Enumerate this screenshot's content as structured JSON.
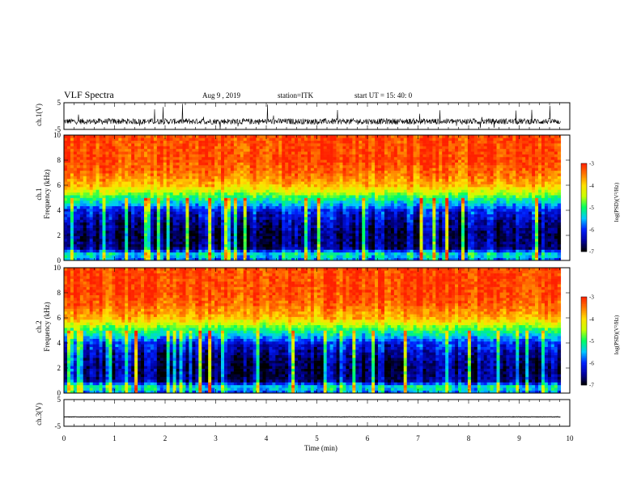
{
  "header": {
    "title": "VLF Spectra",
    "date": "Aug 9 , 2019",
    "station": "station=ITK",
    "start": "start UT = 15: 40: 0"
  },
  "colors": {
    "trace": "#000000",
    "axis": "#000000",
    "colormap": [
      "#000000",
      "#0000a0",
      "#0020ff",
      "#00c8ff",
      "#00ff60",
      "#c8ff00",
      "#ffe000",
      "#ff7a00",
      "#ff2000",
      "#ffffff"
    ]
  },
  "chart_data": [
    {
      "type": "line",
      "name": "ch1-waveform",
      "ylabel": "ch.1(V)",
      "ylim": [
        -5,
        5
      ],
      "yticks": [
        "5",
        "-5"
      ],
      "x_unit": "min",
      "xlim": [
        0,
        10
      ],
      "data_end_min": 9.82,
      "mean_level": -2,
      "typical_range": [
        -3,
        -1
      ],
      "spike_range": [
        -5,
        5
      ]
    },
    {
      "type": "heatmap",
      "name": "ch1-spectrogram",
      "ylabel_line1": "ch.1",
      "ylabel_line2": "Frequency (kHz)",
      "ylim": [
        0,
        10
      ],
      "yticks": [
        "0",
        "2",
        "4",
        "6",
        "8",
        "10"
      ],
      "xlim": [
        0,
        10
      ],
      "data_end_min": 9.82,
      "colorbar": {
        "label": "log(PSD)(V²/Hz)",
        "range": [
          -7,
          -3
        ],
        "ticks": [
          "-3",
          "-4",
          "-5",
          "-6",
          "-7"
        ]
      },
      "spectral_profile_khz_logpsd": [
        [
          0,
          -5.8
        ],
        [
          0.5,
          -5.2
        ],
        [
          1,
          -6.6
        ],
        [
          2,
          -6.7
        ],
        [
          3,
          -6.5
        ],
        [
          4,
          -6.1
        ],
        [
          4.5,
          -5.5
        ],
        [
          5,
          -5.0
        ],
        [
          5.5,
          -4.4
        ],
        [
          6,
          -3.8
        ],
        [
          7,
          -3.4
        ],
        [
          8,
          -3.2
        ],
        [
          10,
          -3.2
        ]
      ]
    },
    {
      "type": "heatmap",
      "name": "ch2-spectrogram",
      "ylabel_line1": "ch.2",
      "ylabel_line2": "Frequency (kHz)",
      "ylim": [
        0,
        10
      ],
      "yticks": [
        "0",
        "2",
        "4",
        "6",
        "8",
        "10"
      ],
      "xlim": [
        0,
        10
      ],
      "data_end_min": 9.82,
      "colorbar": {
        "label": "log(PSD)(V²/Hz)",
        "range": [
          -7,
          -3
        ],
        "ticks": [
          "-3",
          "-4",
          "-5",
          "-6",
          "-7"
        ]
      },
      "spectral_profile_khz_logpsd": [
        [
          0,
          -5.8
        ],
        [
          0.5,
          -5.2
        ],
        [
          1,
          -6.6
        ],
        [
          2,
          -6.7
        ],
        [
          3,
          -6.5
        ],
        [
          4,
          -6.1
        ],
        [
          4.5,
          -5.5
        ],
        [
          5,
          -5.0
        ],
        [
          5.5,
          -4.4
        ],
        [
          6,
          -3.8
        ],
        [
          7,
          -3.4
        ],
        [
          8,
          -3.2
        ],
        [
          10,
          -3.2
        ]
      ]
    },
    {
      "type": "line",
      "name": "ch3-waveform",
      "ylabel": "ch.3(V)",
      "ylim": [
        -5,
        5
      ],
      "yticks": [
        "5",
        "-5"
      ],
      "xlim": [
        0,
        10
      ],
      "data_end_min": 9.82,
      "mean_level": -1.5
    }
  ],
  "xaxis": {
    "label": "Time (min)",
    "ticks": [
      "0",
      "1",
      "2",
      "3",
      "4",
      "5",
      "6",
      "7",
      "8",
      "9",
      "10"
    ]
  }
}
